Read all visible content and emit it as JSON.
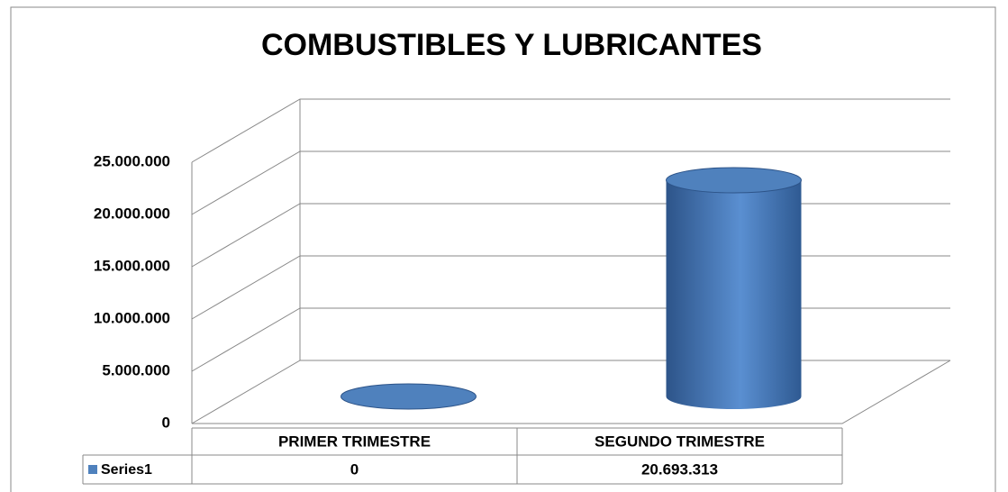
{
  "chart_data": {
    "type": "cylinder3d",
    "title": "COMBUSTIBLES Y LUBRICANTES",
    "categories": [
      "PRIMER TRIMESTRE",
      "SEGUNDO TRIMESTRE"
    ],
    "series": [
      {
        "name": "Series1",
        "color": "#4f81bd",
        "values": [
          0,
          20693313
        ],
        "value_labels": [
          "0",
          "20.693.313"
        ]
      }
    ],
    "ylim": [
      0,
      25000000
    ],
    "yticks": [
      0,
      {
        "value": 5000000,
        "label": "5.000.000"
      },
      {
        "value": 10000000,
        "label": "10.000.000"
      },
      {
        "value": 15000000,
        "label": "15.000.000"
      },
      {
        "value": 20000000,
        "label": "20.000.000"
      },
      {
        "value": 25000000,
        "label": "25.000.000"
      }
    ],
    "grid": true,
    "data_table": true
  }
}
